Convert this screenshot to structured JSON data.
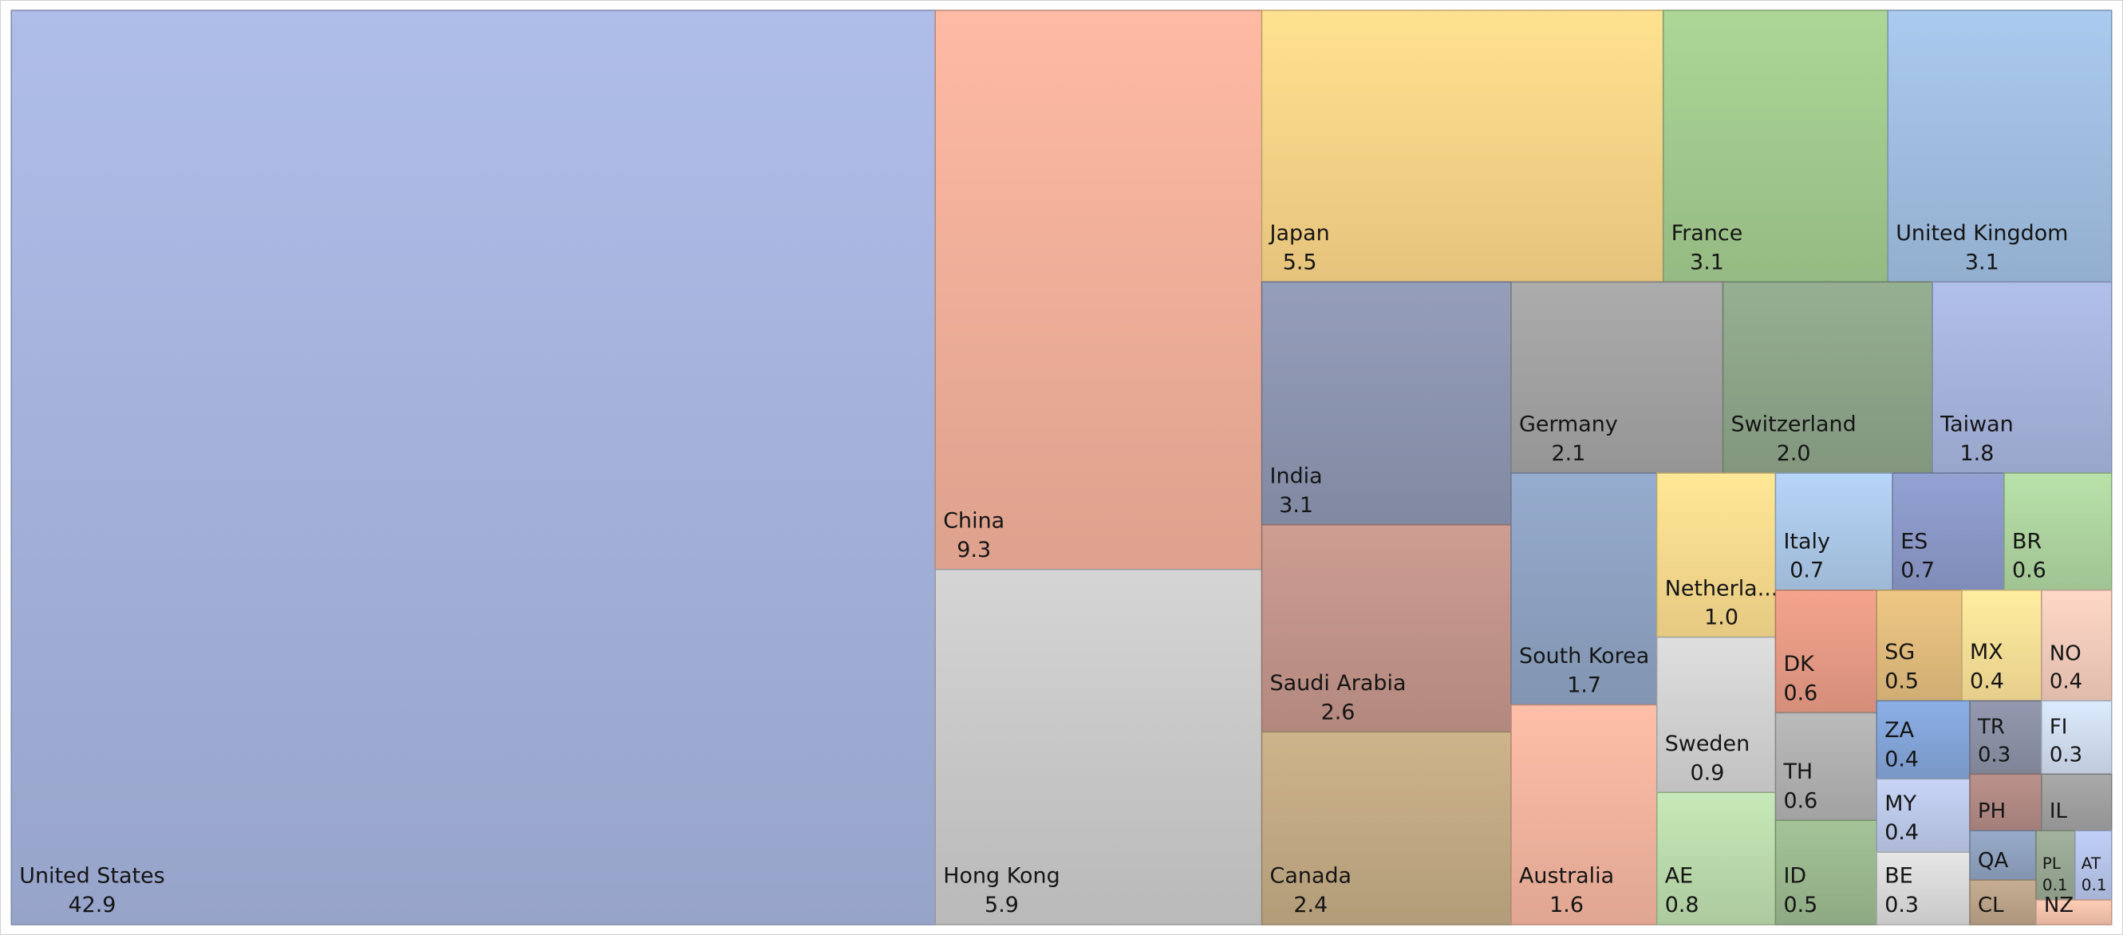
{
  "chart_data": {
    "type": "treemap",
    "items": [
      {
        "label": "United States",
        "value": "42.9",
        "color": "#a8b6e0"
      },
      {
        "label": "China",
        "value": "9.3",
        "color": "#f6b39d"
      },
      {
        "label": "Hong Kong",
        "value": "5.9",
        "color": "#cdcdcd"
      },
      {
        "label": "Japan",
        "value": "5.5",
        "color": "#ffd98a"
      },
      {
        "label": "France",
        "value": "3.1",
        "color": "#a5cf91"
      },
      {
        "label": "United Kingdom",
        "value": "3.1",
        "color": "#a3c2e6"
      },
      {
        "label": "India",
        "value": "3.1",
        "color": "#8f98b4"
      },
      {
        "label": "Saudi Arabia",
        "value": "2.6",
        "color": "#c6978c"
      },
      {
        "label": "Canada",
        "value": "2.4",
        "color": "#c6ad86"
      },
      {
        "label": "Germany",
        "value": "2.1",
        "color": "#a5a5a5"
      },
      {
        "label": "Switzerland",
        "value": "2.0",
        "color": "#90a88c"
      },
      {
        "label": "Taiwan",
        "value": "1.8",
        "color": "#aab8e2"
      },
      {
        "label": "South Korea",
        "value": "1.7",
        "color": "#90a5c6"
      },
      {
        "label": "Australia",
        "value": "1.6",
        "color": "#f8b8a2"
      },
      {
        "label": "Netherla...",
        "value": "1.0",
        "color": "#ffdf90"
      },
      {
        "label": "Sweden",
        "value": "0.9",
        "color": "#d6d6d6"
      },
      {
        "label": "AE",
        "value": "0.8",
        "color": "#bfe0b0"
      },
      {
        "label": "Italy",
        "value": "0.7",
        "color": "#b0cdee"
      },
      {
        "label": "ES",
        "value": "0.7",
        "color": "#8e9ccc"
      },
      {
        "label": "BR",
        "value": "0.6",
        "color": "#b2d9a3"
      },
      {
        "label": "DK",
        "value": "0.6",
        "color": "#ec9e88"
      },
      {
        "label": "TH",
        "value": "0.6",
        "color": "#b4b4b4"
      },
      {
        "label": "ID",
        "value": "0.5",
        "color": "#9ebc92"
      },
      {
        "label": "SG",
        "value": "0.5",
        "color": "#e7c080"
      },
      {
        "label": "MX",
        "value": "0.4",
        "color": "#ffe59a"
      },
      {
        "label": "NO",
        "value": "0.4",
        "color": "#f9d0bf"
      },
      {
        "label": "ZA",
        "value": "0.4",
        "color": "#86a8dd"
      },
      {
        "label": "MY",
        "value": "0.4",
        "color": "#c0cdee"
      },
      {
        "label": "BE",
        "value": "0.3",
        "color": "#dedede"
      },
      {
        "label": "TR",
        "value": "0.3",
        "color": "#8e93a8"
      },
      {
        "label": "FI",
        "value": "0.3",
        "color": "#d4e2f4"
      },
      {
        "label": "PH",
        "value": "",
        "color": "#b58c86"
      },
      {
        "label": "IL",
        "value": "",
        "color": "#a3a3a3"
      },
      {
        "label": "QA",
        "value": "",
        "color": "#91a4c2"
      },
      {
        "label": "PL",
        "value": "0.1",
        "color": "#9cab96"
      },
      {
        "label": "AT",
        "value": "0.1",
        "color": "#bac8ee"
      },
      {
        "label": "CL",
        "value": "",
        "color": "#bfa78b"
      },
      {
        "label": "NZ",
        "value": "",
        "color": "#fcc6b0"
      }
    ]
  }
}
